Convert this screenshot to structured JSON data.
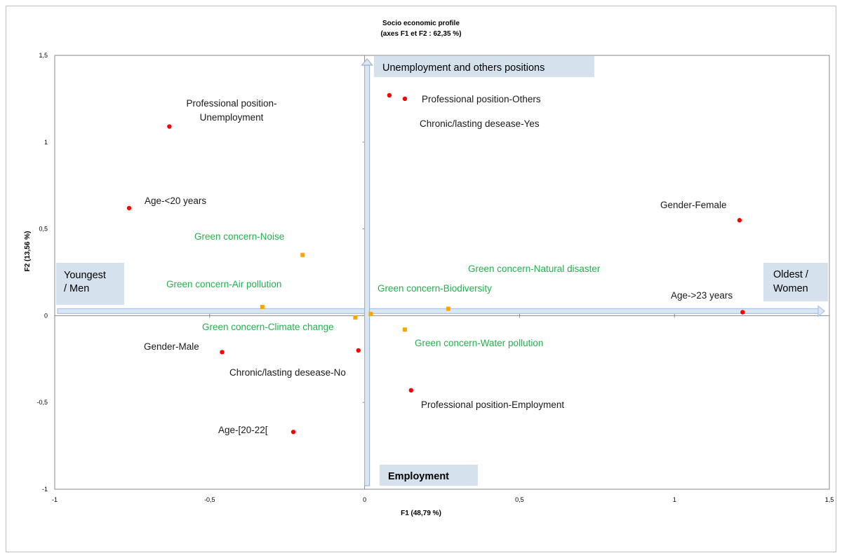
{
  "chart_data": {
    "type": "scatter",
    "title": "Socio economic profile",
    "subtitle": "(axes F1 et F2 : 62,35 %)",
    "xlabel": "F1 (48,79 %)",
    "ylabel": "F2 (13,56 %)",
    "xlim": [
      -1,
      1.5
    ],
    "ylim": [
      -1,
      1.5
    ],
    "x_ticks": [
      "-1",
      "-0,5",
      "0",
      "0,5",
      "1",
      "1,5"
    ],
    "y_ticks": [
      "-1",
      "-0,5",
      "0",
      "0,5",
      "1",
      "1,5"
    ],
    "grid": false,
    "colors": {
      "profile_points": "#ff0000",
      "green_points": "#ffa500",
      "green_labels": "#22b04c",
      "profile_labels": "#1a1a1a",
      "annotation_box": "#d6e1ee",
      "arrow": "#a9c4e4"
    },
    "series": [
      {
        "marker": "circle",
        "points": [
          {
            "label": "Professional position-\nUnemployment",
            "x": -0.63,
            "y": 1.09
          },
          {
            "label": "",
            "x": 0.08,
            "y": 1.27
          },
          {
            "label": "Professional position-Others",
            "x": 0.13,
            "y": 1.25
          },
          {
            "label": "Chronic/lasting desease-Yes",
            "x": null,
            "y": null
          },
          {
            "label": "Age-<20 years",
            "x": -0.76,
            "y": 0.62
          },
          {
            "label": "Gender-Female",
            "x": 1.21,
            "y": 0.55
          },
          {
            "label": "Age->23 years",
            "x": 1.22,
            "y": 0.02
          },
          {
            "label": "Gender-Male",
            "x": -0.46,
            "y": -0.21
          },
          {
            "label": "Chronic/lasting desease-No",
            "x": -0.02,
            "y": -0.2
          },
          {
            "label": "Professional position-Employment",
            "x": 0.15,
            "y": -0.43
          },
          {
            "label": "Age-[20-22[",
            "x": -0.23,
            "y": -0.67
          }
        ]
      },
      {
        "marker": "square",
        "points": [
          {
            "label": "Green concern-Noise",
            "x": -0.2,
            "y": 0.35
          },
          {
            "label": "Green concern-Air pollution",
            "x": -0.33,
            "y": 0.05
          },
          {
            "label": "Green concern-Climate change",
            "x": -0.03,
            "y": -0.01
          },
          {
            "label": "Green concern-Biodiversity",
            "x": 0.02,
            "y": 0.01
          },
          {
            "label": "Green concern-Natural disaster",
            "x": 0.27,
            "y": 0.04
          },
          {
            "label": "Green concern-Water pollution",
            "x": 0.13,
            "y": -0.08
          }
        ]
      }
    ],
    "annotations": [
      {
        "text": "Unemployment and others positions"
      },
      {
        "text": "Employment"
      },
      {
        "text": "Youngest\n/ Men"
      },
      {
        "text": "Oldest /\nWomen"
      }
    ]
  }
}
